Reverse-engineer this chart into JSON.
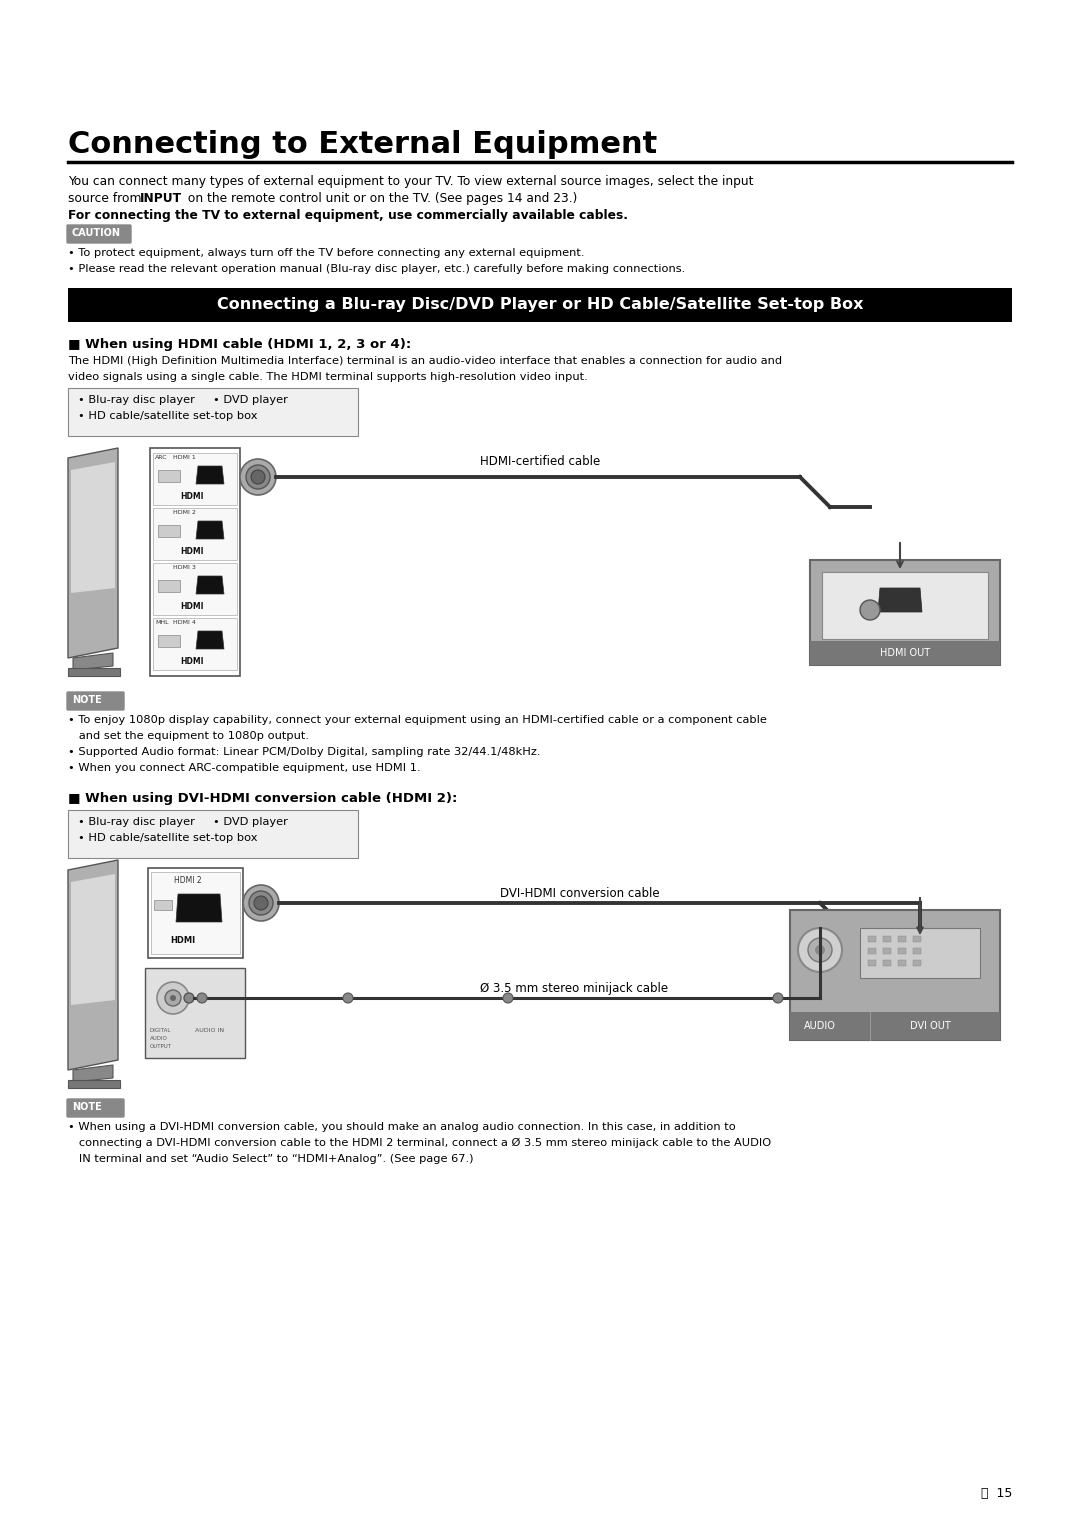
{
  "bg_color": "#ffffff",
  "title": "Connecting to External Equipment",
  "intro_line1": "You can connect many types of external equipment to your TV. To view external source images, select the input",
  "intro_line2": "source from INPUT on the remote control unit or on the TV. (See pages 14 and 23.)",
  "intro_line3": "For connecting the TV to external equipment, use commercially available cables.",
  "caution_label": "CAUTION",
  "caution_bullet1": "• To protect equipment, always turn off the TV before connecting any external equipment.",
  "caution_bullet2": "• Please read the relevant operation manual (Blu-ray disc player, etc.) carefully before making connections.",
  "section_bar_text": "Connecting a Blu-ray Disc/DVD Player or HD Cable/Satellite Set-top Box",
  "hdmi_heading": "■ When using HDMI cable (HDMI 1, 2, 3 or 4):",
  "hdmi_desc1": "The HDMI (High Definition Multimedia Interface) terminal is an audio-video interface that enables a connection for audio and",
  "hdmi_desc2": "video signals using a single cable. The HDMI terminal supports high-resolution video input.",
  "devices_line1": "• Blu-ray disc player     • DVD player",
  "devices_line2": "• HD cable/satellite set-top box",
  "hdmi_cable_label": "HDMI-certified cable",
  "note1_label": "NOTE",
  "note1_b1": "• To enjoy 1080p display capability, connect your external equipment using an HDMI-certified cable or a component cable",
  "note1_b1b": "   and set the equipment to 1080p output.",
  "note1_b2": "• Supported Audio format: Linear PCM/Dolby Digital, sampling rate 32/44.1/48kHz.",
  "note1_b3": "• When you connect ARC-compatible equipment, use HDMI 1.",
  "dvi_heading": "■ When using DVI-HDMI conversion cable (HDMI 2):",
  "devices2_line1": "• Blu-ray disc player     • DVD player",
  "devices2_line2": "• HD cable/satellite set-top box",
  "dvi_cable_label": "DVI-HDMI conversion cable",
  "minijack_label": "Ø 3.5 mm stereo minijack cable",
  "note2_label": "NOTE",
  "note2_b1": "• When using a DVI-HDMI conversion cable, you should make an analog audio connection. In this case, in addition to",
  "note2_b1b": "   connecting a DVI-HDMI conversion cable to the HDMI 2 terminal, connect a Ø 3.5 mm stereo minijack cable to the AUDIO",
  "note2_b1c": "   IN terminal and set “Audio Select” to “HDMI+Analog”. (See page 67.)",
  "page_num": "15",
  "hdmi_out_label": "HDMI OUT",
  "audio_label": "AUDIO",
  "dvi_out_label": "DVI OUT"
}
